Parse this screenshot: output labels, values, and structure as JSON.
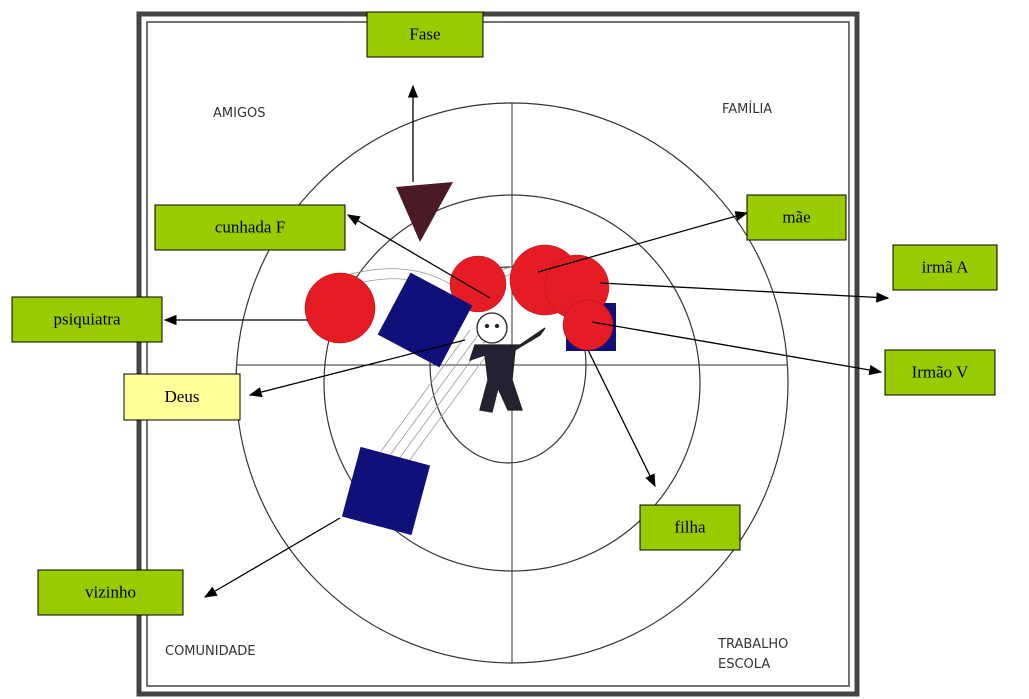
{
  "quadrants": [
    {
      "lines": [
        "AMIGOS"
      ]
    },
    {
      "lines": [
        "FAMÍLIA"
      ]
    },
    {
      "lines": [
        "COMUNIDADE"
      ]
    },
    {
      "lines": [
        "TRABALHO",
        "ESCOLA"
      ]
    }
  ],
  "callouts": [
    {
      "label": "Fase"
    },
    {
      "label": "cunhada F"
    },
    {
      "label": "mãe"
    },
    {
      "label": "irmã A"
    },
    {
      "label": "psiquiatra"
    },
    {
      "label": "Deus"
    },
    {
      "label": "Irmão V"
    },
    {
      "label": "filha"
    },
    {
      "label": "vizinho"
    }
  ]
}
